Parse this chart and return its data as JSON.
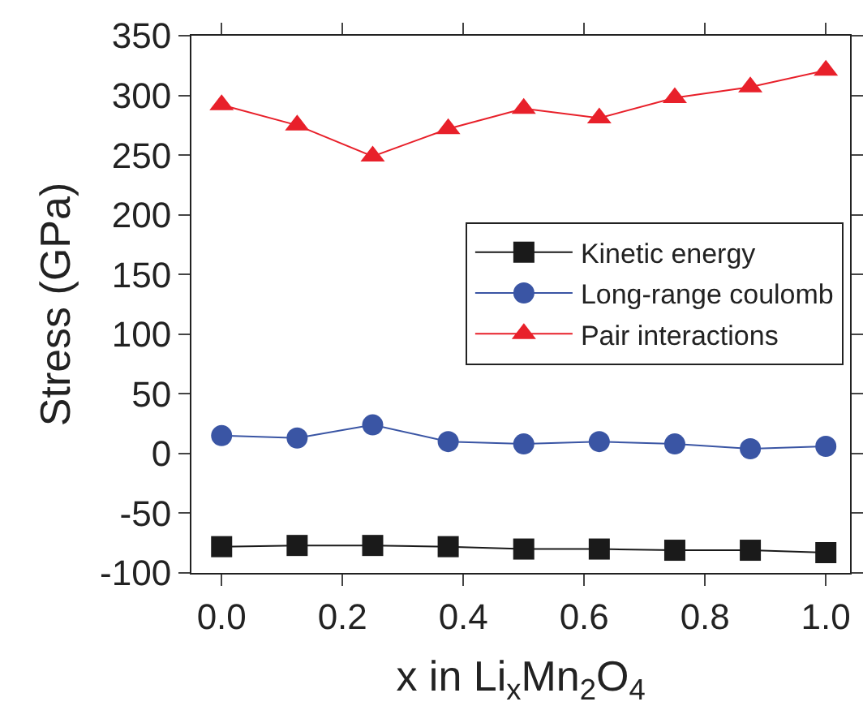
{
  "chart_data": {
    "type": "line",
    "xlabel": "x in Li$_{x}$Mn$_{2}$O$_{4}$",
    "ylabel": "Stress (GPa)",
    "x": [
      0,
      0.125,
      0.25,
      0.375,
      0.5,
      0.625,
      0.75,
      0.875,
      1.0
    ],
    "series": [
      {
        "name": "Kinetic energy",
        "color": "#1a1a1a",
        "marker": "square",
        "values": [
          -78,
          -77,
          -77,
          -78,
          -80,
          -80,
          -81,
          -81,
          -83
        ]
      },
      {
        "name": "Long-range coulomb",
        "color": "#3a55a4",
        "marker": "circle",
        "values": [
          15,
          13,
          24,
          10,
          8,
          10,
          8,
          4,
          6
        ]
      },
      {
        "name": "Pair interactions",
        "color": "#e8202a",
        "marker": "triangle",
        "values": [
          292,
          275,
          249,
          272,
          289,
          281,
          298,
          307,
          321
        ]
      }
    ],
    "xlim": [
      -0.05,
      1.04
    ],
    "xticks": [
      {
        "value": 0,
        "label": "0.0"
      },
      0.2,
      0.4,
      0.6,
      0.8,
      {
        "value": 1,
        "label": "1.0"
      }
    ],
    "ylim": [
      -100,
      350
    ],
    "yticks": [
      -100,
      -50,
      0,
      50,
      100,
      150,
      200,
      250,
      300,
      350
    ],
    "legend": "right",
    "line_style": "solid"
  }
}
